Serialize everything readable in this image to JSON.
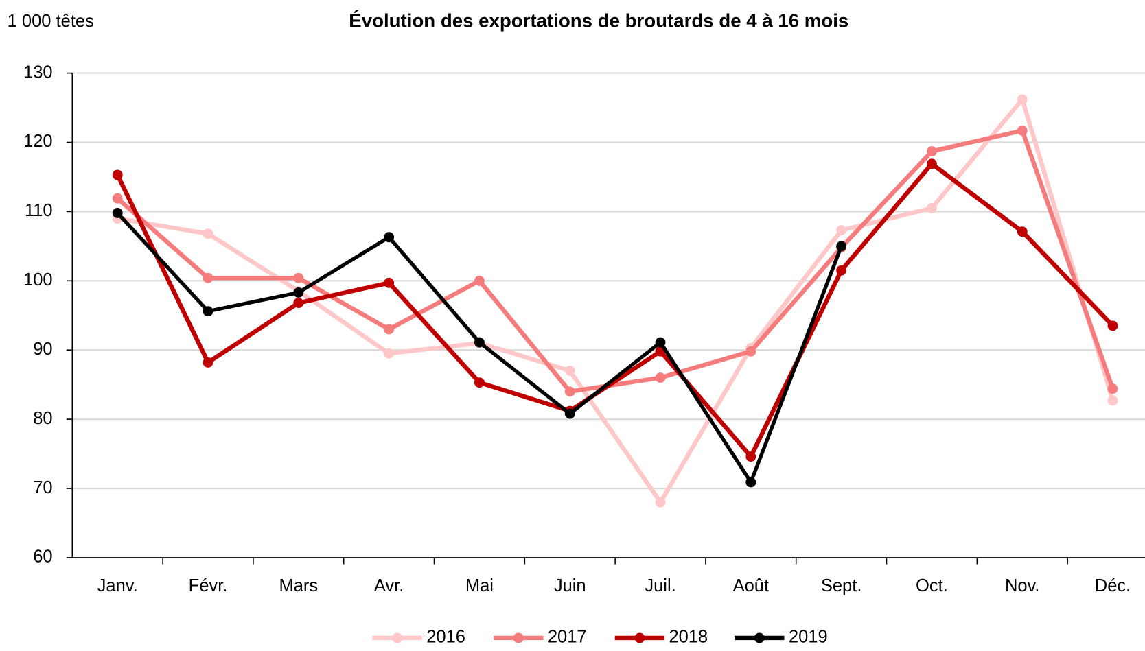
{
  "chart_data": {
    "type": "line",
    "title": "Évolution des exportations de broutards de 4 à 16 mois",
    "y_label": "1 000 têtes",
    "categories": [
      "Janv.",
      "Févr.",
      "Mars",
      "Avr.",
      "Mai",
      "Juin",
      "Juil.",
      "Août",
      "Sept.",
      "Oct.",
      "Nov.",
      "Déc."
    ],
    "series": [
      {
        "name": "2016",
        "color": "#ffc7c7",
        "values": [
          109,
          106.8,
          98.5,
          89.5,
          91,
          87,
          68,
          90.3,
          107.3,
          110.5,
          126.2,
          82.7
        ]
      },
      {
        "name": "2017",
        "color": "#f47c7c",
        "values": [
          111.9,
          100.4,
          100.4,
          93,
          100,
          84,
          86,
          89.8,
          104.8,
          118.7,
          121.7,
          84.4
        ]
      },
      {
        "name": "2018",
        "color": "#c00000",
        "values": [
          115.3,
          88.2,
          96.8,
          99.7,
          85.3,
          81.2,
          89.8,
          74.6,
          101.5,
          116.9,
          107.1,
          93.5
        ]
      },
      {
        "name": "2019",
        "color": "#000000",
        "values": [
          109.8,
          95.6,
          98.3,
          106.3,
          91.1,
          80.8,
          91.1,
          70.9,
          105,
          null,
          null,
          null
        ]
      }
    ],
    "ylim": [
      60,
      130
    ],
    "yticks": [
      60,
      70,
      80,
      90,
      100,
      110,
      120,
      130
    ],
    "grid": true,
    "legend": "bottom"
  }
}
